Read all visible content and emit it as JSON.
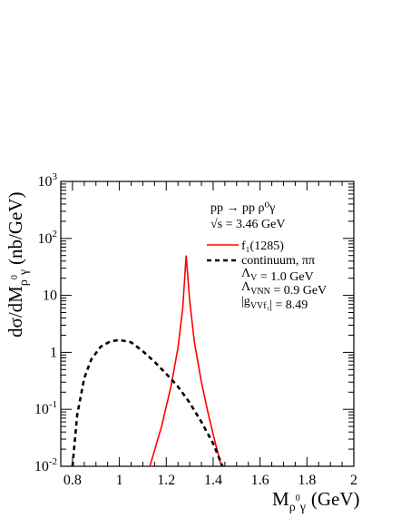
{
  "chart_data": {
    "type": "line",
    "xlabel": {
      "main": "M",
      "sub": "ρ",
      "subsup": "0",
      "sub2": "γ",
      "unit": "(GeV)"
    },
    "ylabel": {
      "prefix": "dσ/dM",
      "sub": "ρ",
      "subsup": "0",
      "sub2": "γ",
      "unit": "(nb/GeV)"
    },
    "xlim": [
      0.75,
      2.0
    ],
    "ylim": [
      0.01,
      1000
    ],
    "yscale": "log",
    "grid": false,
    "x_ticks": [
      "0.8",
      "1",
      "1.2",
      "1.4",
      "1.6",
      "1.8",
      "2"
    ],
    "x_tick_values": [
      0.8,
      1.0,
      1.2,
      1.4,
      1.6,
      1.8,
      2.0
    ],
    "y_ticks": [
      {
        "base": "10",
        "exp": "-2",
        "value": 0.01
      },
      {
        "base": "10",
        "exp": "-1",
        "value": 0.1
      },
      {
        "base": "1",
        "exp": "",
        "value": 1
      },
      {
        "base": "10",
        "exp": "",
        "value": 10
      },
      {
        "base": "10",
        "exp": "2",
        "value": 100
      },
      {
        "base": "10",
        "exp": "3",
        "value": 1000
      }
    ],
    "annotations": {
      "reaction": "pp → pp ρ⁰γ",
      "energy": "√s = 3.46 GeV",
      "lambda_v": "Λ<sub>V</sub> = 1.0 GeV",
      "lambda_vnn": "Λ<sub>VNN</sub> = 0.9 GeV",
      "coupling": "|g<sub>VVf₁</sub>| = 8.49"
    },
    "legend_position": "top-right",
    "series": [
      {
        "name": "f₁(1285)",
        "color": "#ff0000",
        "style": "solid",
        "x": [
          1.13,
          1.18,
          1.22,
          1.25,
          1.27,
          1.285,
          1.3,
          1.32,
          1.35,
          1.38,
          1.41,
          1.435
        ],
        "y": [
          0.01,
          0.05,
          0.25,
          1.2,
          6,
          50,
          8,
          1.5,
          0.3,
          0.08,
          0.025,
          0.01
        ]
      },
      {
        "name": "continuum, ππ",
        "color": "#000000",
        "style": "dashed",
        "x": [
          0.8,
          0.82,
          0.85,
          0.88,
          0.92,
          0.96,
          1.0,
          1.05,
          1.1,
          1.15,
          1.2,
          1.25,
          1.3,
          1.35,
          1.4,
          1.44
        ],
        "y": [
          0.01,
          0.08,
          0.35,
          0.75,
          1.25,
          1.55,
          1.65,
          1.5,
          1.05,
          0.68,
          0.42,
          0.25,
          0.13,
          0.06,
          0.025,
          0.01
        ]
      }
    ]
  }
}
